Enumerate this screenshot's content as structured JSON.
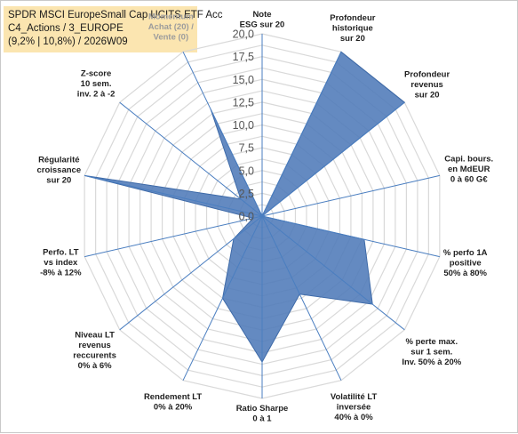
{
  "header": {
    "title": "SPDR MSCI EuropeSmall Cap UCITS ETF Acc",
    "subtitle": "C4_Actions / 3_EUROPE",
    "info": "(9,2% | 10,8%) / 2026W09"
  },
  "chart_data": {
    "type": "radar",
    "title": "SPDR MSCI EuropeSmall Cap UCITS ETF Acc",
    "range": [
      0,
      20
    ],
    "tick_step": 2.5,
    "tick_labels": [
      "0,0",
      "2,5",
      "5,0",
      "7,5",
      "10,0",
      "12,5",
      "15,0",
      "17,5",
      "20,0"
    ],
    "series_color": "#4f7ab8",
    "grid_color": "#d9d9d9",
    "spoke_color": "#4a7ec0",
    "axes": [
      {
        "lines": [
          "Note",
          "ESG sur 20"
        ],
        "value": 0
      },
      {
        "lines": [
          "Profondeur",
          "historique",
          "sur 20"
        ],
        "value": 20
      },
      {
        "lines": [
          "Profondeur",
          "revenus",
          "sur 20"
        ],
        "value": 20
      },
      {
        "lines": [
          "Capi. bours.",
          "en MdEUR",
          "0 à 60 G€"
        ],
        "value": 0
      },
      {
        "lines": [
          "% perfo 1A",
          "positive",
          "50% à 80%"
        ],
        "value": 11.5
      },
      {
        "lines": [
          "% perte max.",
          "sur 1 sem.",
          "Inv. 50% à 20%"
        ],
        "value": 15.5
      },
      {
        "lines": [
          "Volatilité LT",
          "inversée",
          "40% à 0%"
        ],
        "value": 9.5
      },
      {
        "lines": [
          "Ratio Sharpe",
          "0 à 1"
        ],
        "value": 16
      },
      {
        "lines": [
          "Rendement LT",
          "0% à 20%"
        ],
        "value": 10
      },
      {
        "lines": [
          "Niveau LT",
          "revenus",
          "reccurents",
          "0% à 6%"
        ],
        "value": 4
      },
      {
        "lines": [
          "Perfo. LT",
          "vs index",
          "-8% à 12%"
        ],
        "value": 1
      },
      {
        "lines": [
          "Régularité",
          "croissance",
          "sur 20"
        ],
        "value": 20
      },
      {
        "lines": [
          "Z-score",
          "10 sem.",
          "inv. 2 à -2"
        ],
        "value": 3
      },
      {
        "lines": [
          "Momentum",
          "Achat (20) /",
          "Vente (0)"
        ],
        "value": 13
      }
    ]
  }
}
